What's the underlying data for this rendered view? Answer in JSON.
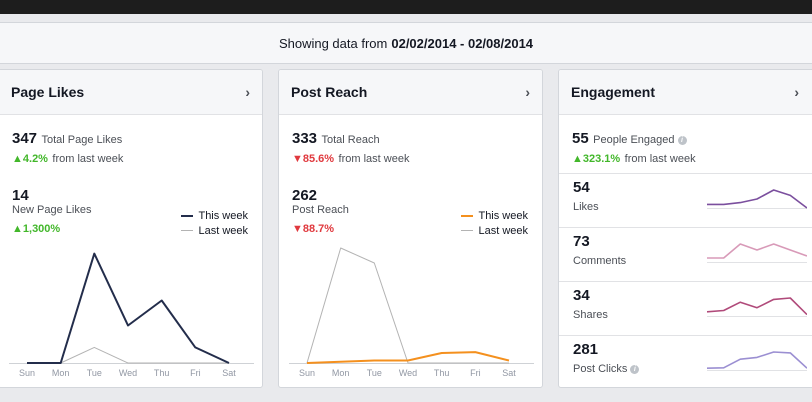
{
  "header": {
    "showing_prefix": "Showing data from",
    "date_range": "02/02/2014 - 02/08/2014"
  },
  "cards": {
    "likes": {
      "title": "Page Likes",
      "total_value": "347",
      "total_label": "Total Page Likes",
      "total_change": "4.2%",
      "total_change_suffix": "from last week",
      "new_value": "14",
      "new_label": "New Page Likes",
      "new_change": "1,300%"
    },
    "reach": {
      "title": "Post Reach",
      "total_value": "333",
      "total_label": "Total Reach",
      "total_change": "85.6%",
      "total_change_suffix": "from last week",
      "post_value": "262",
      "post_label": "Post Reach",
      "post_change": "88.7%"
    },
    "engagement": {
      "title": "Engagement",
      "people_value": "55",
      "people_label": "People Engaged",
      "people_change": "323.1%",
      "people_change_suffix": "from last week",
      "rows": [
        {
          "value": "54",
          "label": "Likes",
          "color": "#7b4f9e"
        },
        {
          "value": "73",
          "label": "Comments",
          "color": "#d89ab8"
        },
        {
          "value": "34",
          "label": "Shares",
          "color": "#b04a7a"
        },
        {
          "value": "281",
          "label": "Post Clicks",
          "color": "#9b8fd2"
        }
      ]
    }
  },
  "legend": {
    "this_week": "This week",
    "last_week": "Last week"
  },
  "colors": {
    "likes_this_week": "#232d4b",
    "reach_this_week": "#f4901e",
    "last_week": "#b3b3b3",
    "up": "#42b72a",
    "down": "#e0393e"
  },
  "chart_data": [
    {
      "type": "line",
      "categories": [
        "Sun",
        "Mon",
        "Tue",
        "Wed",
        "Thu",
        "Fri",
        "Sat"
      ],
      "series": [
        {
          "name": "This week",
          "values": [
            0,
            0,
            14,
            4.8,
            8,
            2,
            0
          ]
        },
        {
          "name": "Last week",
          "values": [
            0,
            0,
            2,
            0,
            0,
            0,
            0
          ]
        }
      ],
      "ylim": [
        0,
        16
      ]
    },
    {
      "type": "line",
      "categories": [
        "Sun",
        "Mon",
        "Tue",
        "Wed",
        "Thu",
        "Fri",
        "Sat"
      ],
      "series": [
        {
          "name": "This week",
          "values": [
            0,
            1,
            2,
            2,
            8,
            8.7,
            2
          ]
        },
        {
          "name": "Last week",
          "values": [
            0,
            92,
            80,
            0,
            0,
            0,
            0
          ]
        }
      ],
      "ylim": [
        0,
        100
      ]
    },
    {
      "type": "line",
      "series": [
        {
          "name": "Likes",
          "values": [
            2,
            2,
            3,
            5,
            10,
            7,
            0
          ]
        },
        {
          "name": "Comments",
          "values": [
            4,
            4,
            18,
            12,
            18,
            12,
            6
          ]
        },
        {
          "name": "Shares",
          "values": [
            3,
            4,
            10,
            6,
            12,
            13,
            1
          ]
        },
        {
          "name": "Post Clicks",
          "values": [
            10,
            12,
            60,
            70,
            100,
            95,
            10
          ]
        }
      ]
    }
  ]
}
